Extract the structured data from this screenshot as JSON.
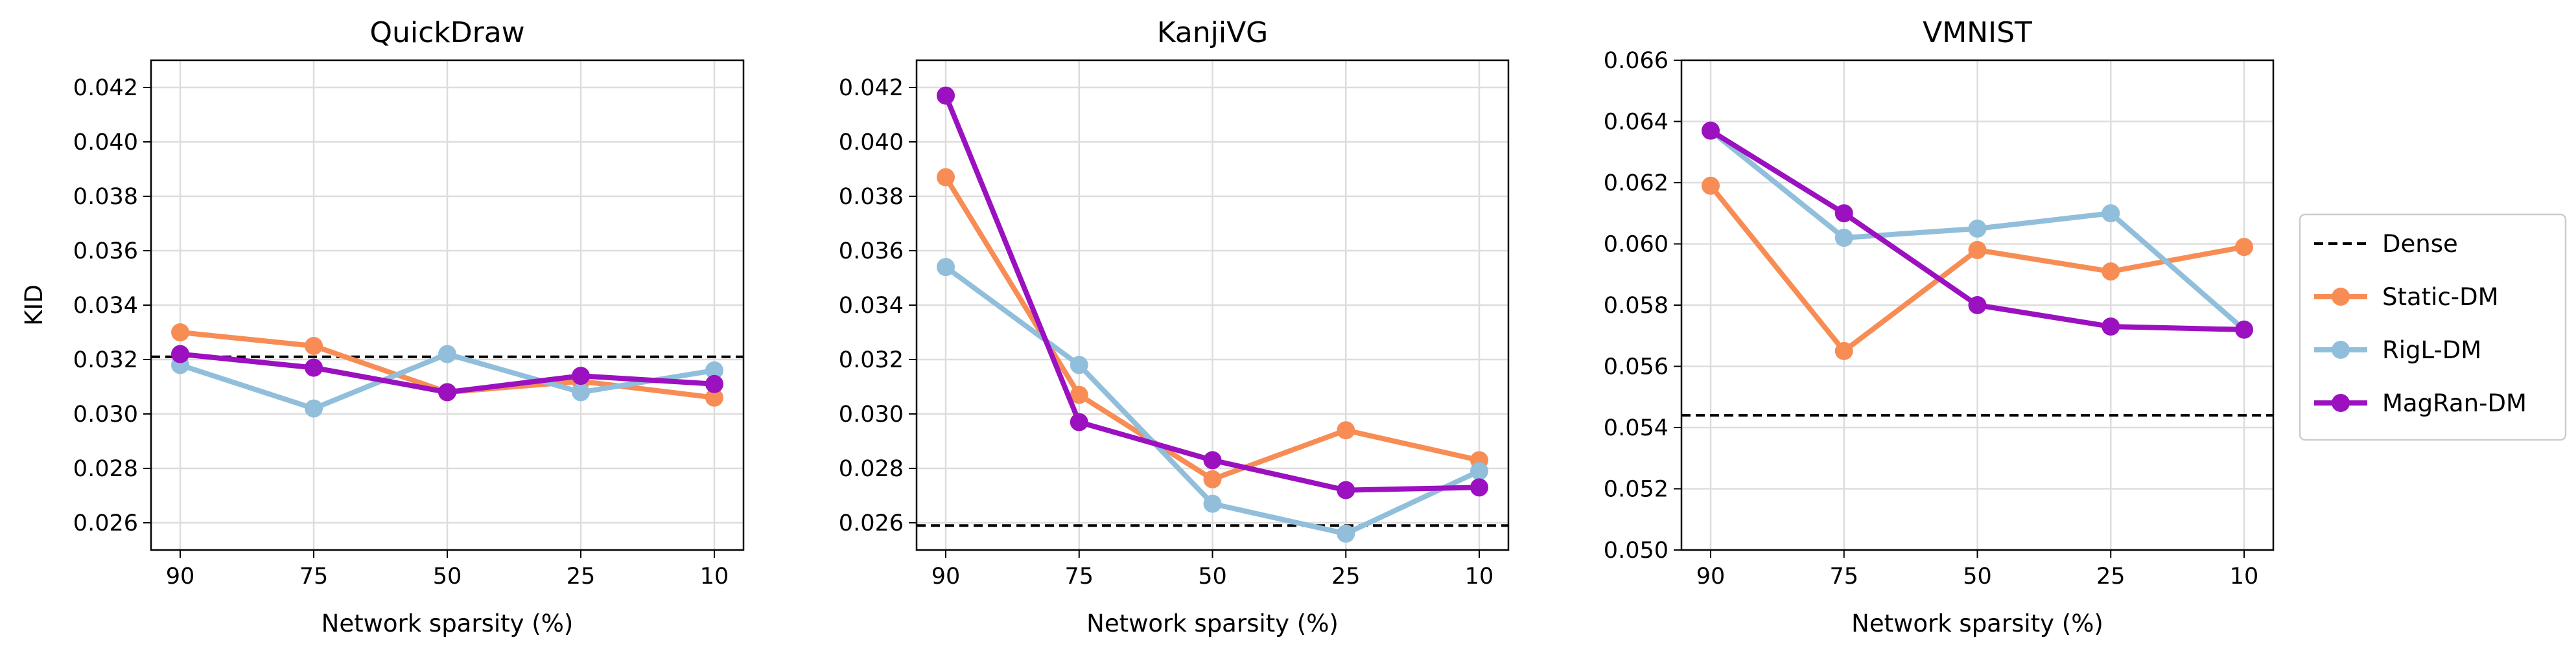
{
  "chart_data": {
    "type": "line",
    "x": [
      "90",
      "75",
      "50",
      "25",
      "10"
    ],
    "xlabel": "Network sparsity (%)",
    "legend_position": "right-outside",
    "legend": [
      {
        "name": "Dense",
        "style": "dashed",
        "color": "#000000"
      },
      {
        "name": "Static-DM",
        "style": "line-marker",
        "color": "#F78D55"
      },
      {
        "name": "RigL-DM",
        "style": "line-marker",
        "color": "#91BFDB"
      },
      {
        "name": "MagRan-DM",
        "style": "line-marker",
        "color": "#9B11BF"
      }
    ],
    "panels": [
      {
        "title": "QuickDraw",
        "ylabel": "KID",
        "ylim": [
          0.025,
          0.043
        ],
        "yticks": [
          "0.026",
          "0.028",
          "0.030",
          "0.032",
          "0.034",
          "0.036",
          "0.038",
          "0.040",
          "0.042"
        ],
        "dense": 0.0321,
        "series": [
          {
            "name": "Static-DM",
            "values": [
              0.033,
              0.0325,
              0.0308,
              0.0312,
              0.0306
            ]
          },
          {
            "name": "RigL-DM",
            "values": [
              0.0318,
              0.0302,
              0.0322,
              0.0308,
              0.0316
            ]
          },
          {
            "name": "MagRan-DM",
            "values": [
              0.0322,
              0.0317,
              0.0308,
              0.0314,
              0.0311
            ]
          }
        ]
      },
      {
        "title": "KanjiVG",
        "ylabel": "",
        "ylim": [
          0.025,
          0.043
        ],
        "yticks": [
          "0.026",
          "0.028",
          "0.030",
          "0.032",
          "0.034",
          "0.036",
          "0.038",
          "0.040",
          "0.042"
        ],
        "dense": 0.0259,
        "series": [
          {
            "name": "Static-DM",
            "values": [
              0.0387,
              0.0307,
              0.0276,
              0.0294,
              0.0283
            ]
          },
          {
            "name": "RigL-DM",
            "values": [
              0.0354,
              0.0318,
              0.0267,
              0.0256,
              0.0279
            ]
          },
          {
            "name": "MagRan-DM",
            "values": [
              0.0417,
              0.0297,
              0.0283,
              0.0272,
              0.0273
            ]
          }
        ]
      },
      {
        "title": "VMNIST",
        "ylabel": "",
        "ylim": [
          0.05,
          0.066
        ],
        "yticks": [
          "0.050",
          "0.052",
          "0.054",
          "0.056",
          "0.058",
          "0.060",
          "0.062",
          "0.064",
          "0.066"
        ],
        "dense": 0.0544,
        "series": [
          {
            "name": "Static-DM",
            "values": [
              0.0619,
              0.0565,
              0.0598,
              0.0591,
              0.0599
            ]
          },
          {
            "name": "RigL-DM",
            "values": [
              0.0637,
              0.0602,
              0.0605,
              0.061,
              0.0572
            ]
          },
          {
            "name": "MagRan-DM",
            "values": [
              0.0637,
              0.061,
              0.058,
              0.0573,
              0.0572
            ]
          }
        ]
      }
    ]
  }
}
